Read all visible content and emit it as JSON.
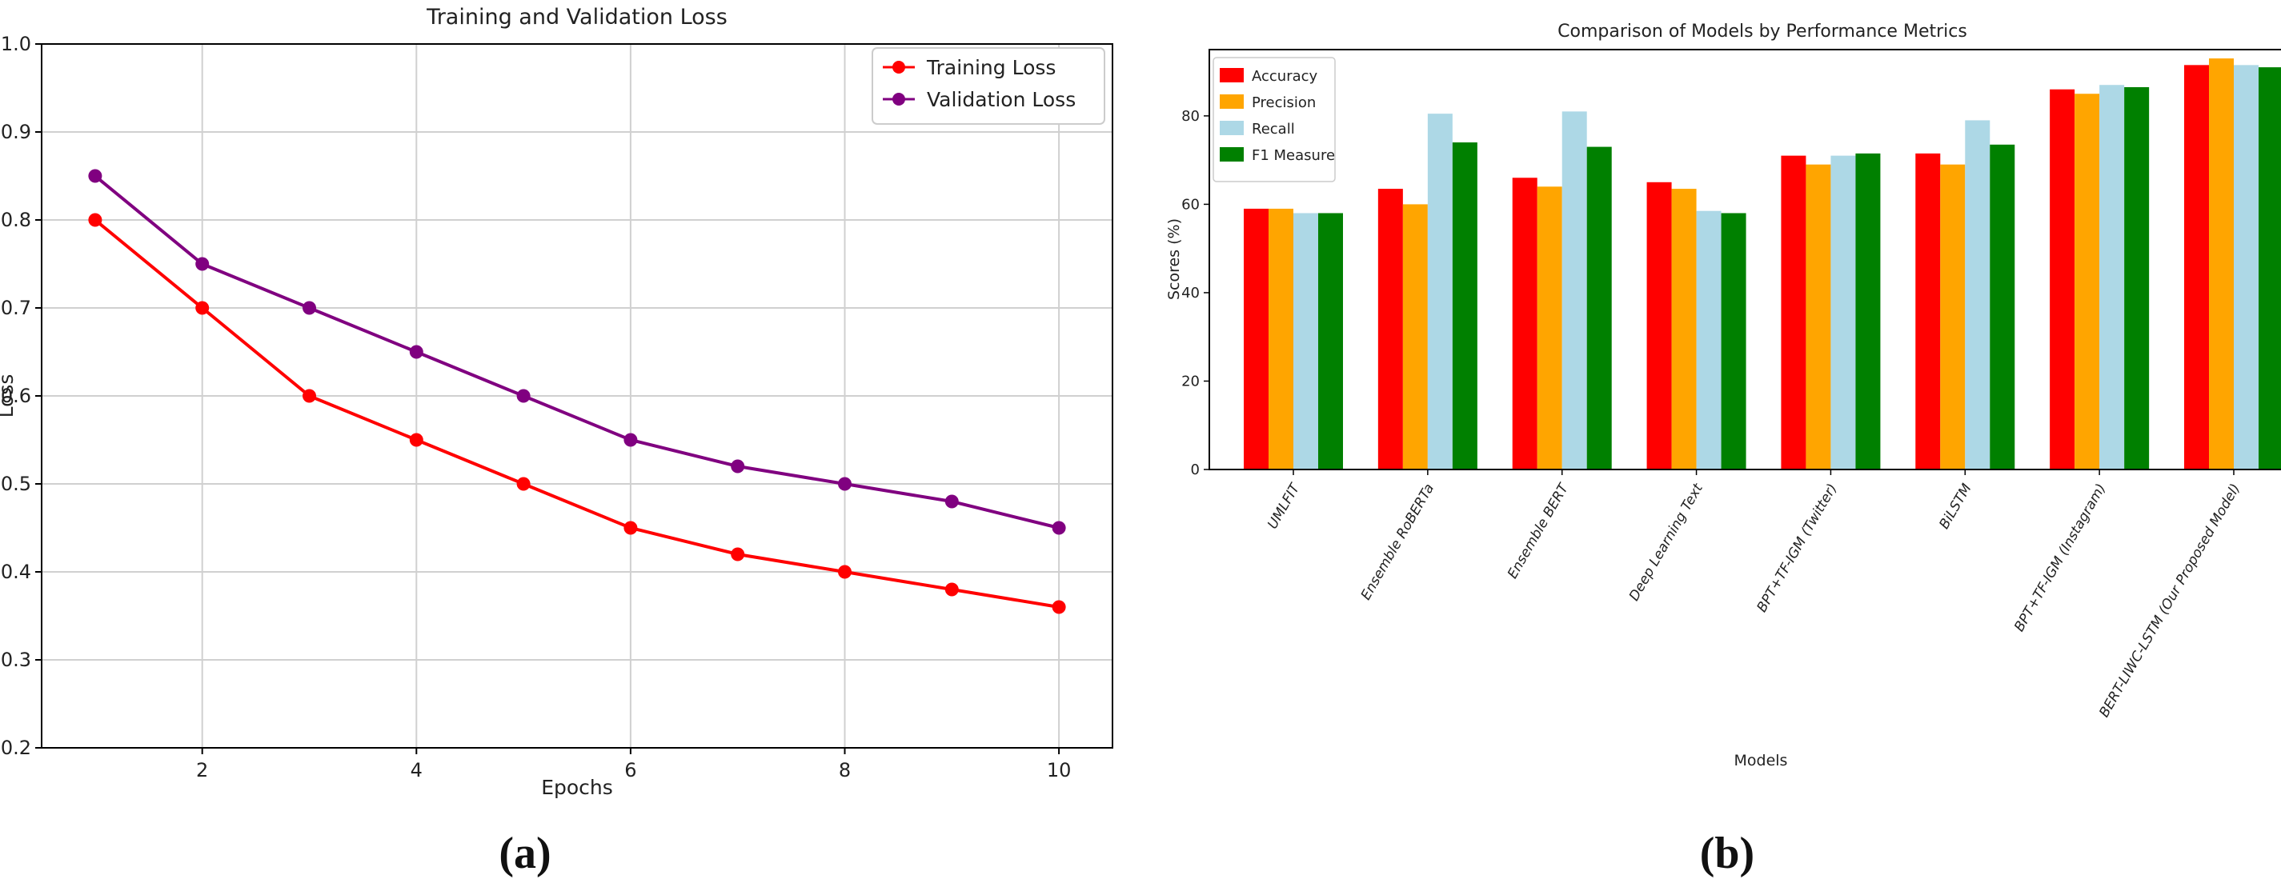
{
  "chart_data": [
    {
      "type": "line",
      "panel_label": "(a)",
      "title": "Training and Validation Loss",
      "xlabel": "Epochs",
      "ylabel": "Loss",
      "x": [
        1,
        2,
        3,
        4,
        5,
        6,
        7,
        8,
        9,
        10
      ],
      "xlim": [
        0.5,
        10.5
      ],
      "ylim": [
        0.2,
        1.0
      ],
      "xticks": [
        "2",
        "4",
        "6",
        "8",
        "10"
      ],
      "xtick_values": [
        2,
        4,
        6,
        8,
        10
      ],
      "yticks": [
        "0.2",
        "0.3",
        "0.4",
        "0.5",
        "0.6",
        "0.7",
        "0.8",
        "0.9",
        "1.0"
      ],
      "ytick_values": [
        0.2,
        0.3,
        0.4,
        0.5,
        0.6,
        0.7,
        0.8,
        0.9,
        1.0
      ],
      "grid": true,
      "legend_position": "top-right",
      "series": [
        {
          "name": "Training Loss",
          "color": "#ff0000",
          "values": [
            0.8,
            0.7,
            0.6,
            0.55,
            0.5,
            0.45,
            0.42,
            0.4,
            0.38,
            0.36
          ]
        },
        {
          "name": "Validation Loss",
          "color": "#800080",
          "values": [
            0.85,
            0.75,
            0.7,
            0.65,
            0.6,
            0.55,
            0.52,
            0.5,
            0.48,
            0.45
          ]
        }
      ]
    },
    {
      "type": "bar",
      "panel_label": "(b)",
      "title": "Comparison of Models by Performance Metrics",
      "xlabel": "Models",
      "ylabel": "Scores (%)",
      "ylim": [
        0,
        95
      ],
      "yticks": [
        "0",
        "20",
        "40",
        "60",
        "80"
      ],
      "ytick_values": [
        0,
        20,
        40,
        60,
        80
      ],
      "grid": false,
      "legend_position": "top-left",
      "categories": [
        "UMLFIT",
        "Ensemble RoBERTa",
        "Ensemble BERT",
        "Deep Learning Text",
        "BPT+TF-IGM (Twitter)",
        "BiLSTM",
        "BPT+TF-IGM (Instagram)",
        "BERT-LIWC-LSTM (Our Proposed Model)"
      ],
      "series": [
        {
          "name": "Accuracy",
          "color": "#ff0000",
          "values": [
            59,
            63.5,
            66,
            65,
            71,
            71.5,
            86,
            91.5
          ]
        },
        {
          "name": "Precision",
          "color": "#ffa500",
          "values": [
            59,
            60,
            64,
            63.5,
            69,
            69,
            85,
            93
          ]
        },
        {
          "name": "Recall",
          "color": "#add8e6",
          "values": [
            58,
            80.5,
            81,
            58.5,
            71,
            79,
            87,
            91.5
          ]
        },
        {
          "name": "F1 Measure",
          "color": "#008000",
          "values": [
            58,
            74,
            73,
            58,
            71.5,
            73.5,
            86.5,
            91
          ]
        }
      ]
    }
  ]
}
